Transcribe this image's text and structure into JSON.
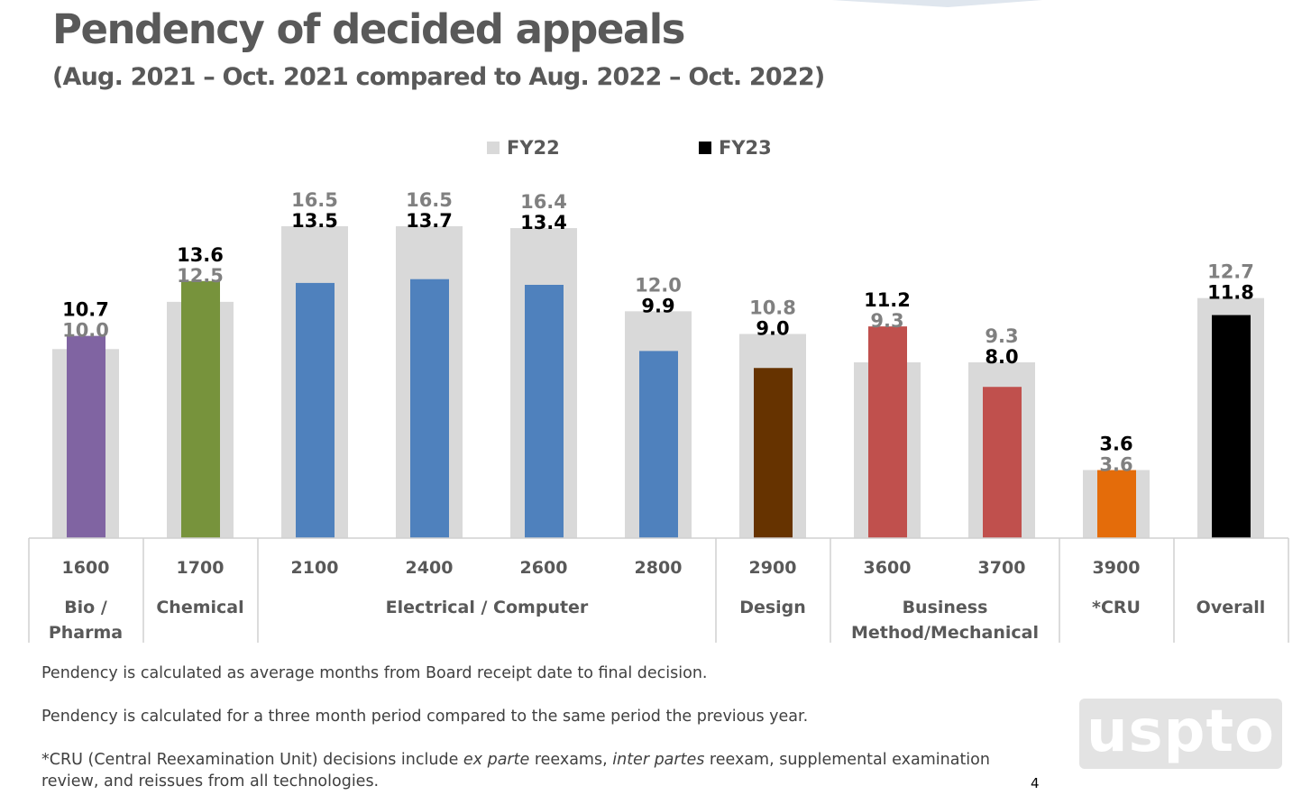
{
  "title": "Pendency of decided appeals",
  "subtitle": "(Aug. 2021 – Oct. 2021 compared to Aug. 2022 – Oct. 2022)",
  "legend": [
    {
      "label": "FY22",
      "color": "#D9D9D9"
    },
    {
      "label": "FY23",
      "color": "#000000"
    }
  ],
  "chart_data": {
    "type": "bar",
    "title": "Pendency of decided appeals",
    "subtitle": "(Aug. 2021 – Oct. 2021 compared to Aug. 2022 – Oct. 2022)",
    "categories": [
      "1600",
      "1700",
      "2100",
      "2400",
      "2600",
      "2800",
      "2900",
      "3600",
      "3700",
      "3900",
      "Overall"
    ],
    "series": [
      {
        "name": "FY22",
        "color": "#D9D9D9",
        "values": [
          10.0,
          12.5,
          16.5,
          16.5,
          16.4,
          12.0,
          10.8,
          9.3,
          9.3,
          3.6,
          12.7
        ]
      },
      {
        "name": "FY23",
        "colors": [
          "#8064A2",
          "#77933C",
          "#4F81BD",
          "#4F81BD",
          "#4F81BD",
          "#4F81BD",
          "#663300",
          "#C0504D",
          "#C0504D",
          "#E46C0A",
          "#000000"
        ],
        "values": [
          10.7,
          13.6,
          13.5,
          13.7,
          13.4,
          9.9,
          9.0,
          11.2,
          8.0,
          3.6,
          11.8
        ]
      }
    ],
    "groups": [
      {
        "label": "Bio / Pharma",
        "categories": [
          "1600"
        ]
      },
      {
        "label": "Chemical",
        "categories": [
          "1700"
        ]
      },
      {
        "label": "Electrical / Computer",
        "categories": [
          "2100",
          "2400",
          "2600",
          "2800"
        ]
      },
      {
        "label": "Design",
        "categories": [
          "2900"
        ]
      },
      {
        "label": "Business Method/Mechanical",
        "categories": [
          "3600",
          "3700"
        ]
      },
      {
        "label": "*CRU",
        "categories": [
          "3900"
        ]
      },
      {
        "label": "Overall",
        "categories": []
      }
    ],
    "ylim": [
      0,
      18
    ],
    "grid": false,
    "legend_position": "top"
  },
  "notes": [
    "Pendency is calculated as average months from Board receipt date to final decision.",
    "Pendency is calculated for a three month period compared to the same period the previous year.",
    "*CRU (Central Reexamination Unit) decisions include ",
    "ex parte",
    " reexams, ",
    "inter partes",
    " reexam, supplemental examination",
    "review, and reissues from all technologies."
  ],
  "logo": "uspto",
  "page_number": "4"
}
